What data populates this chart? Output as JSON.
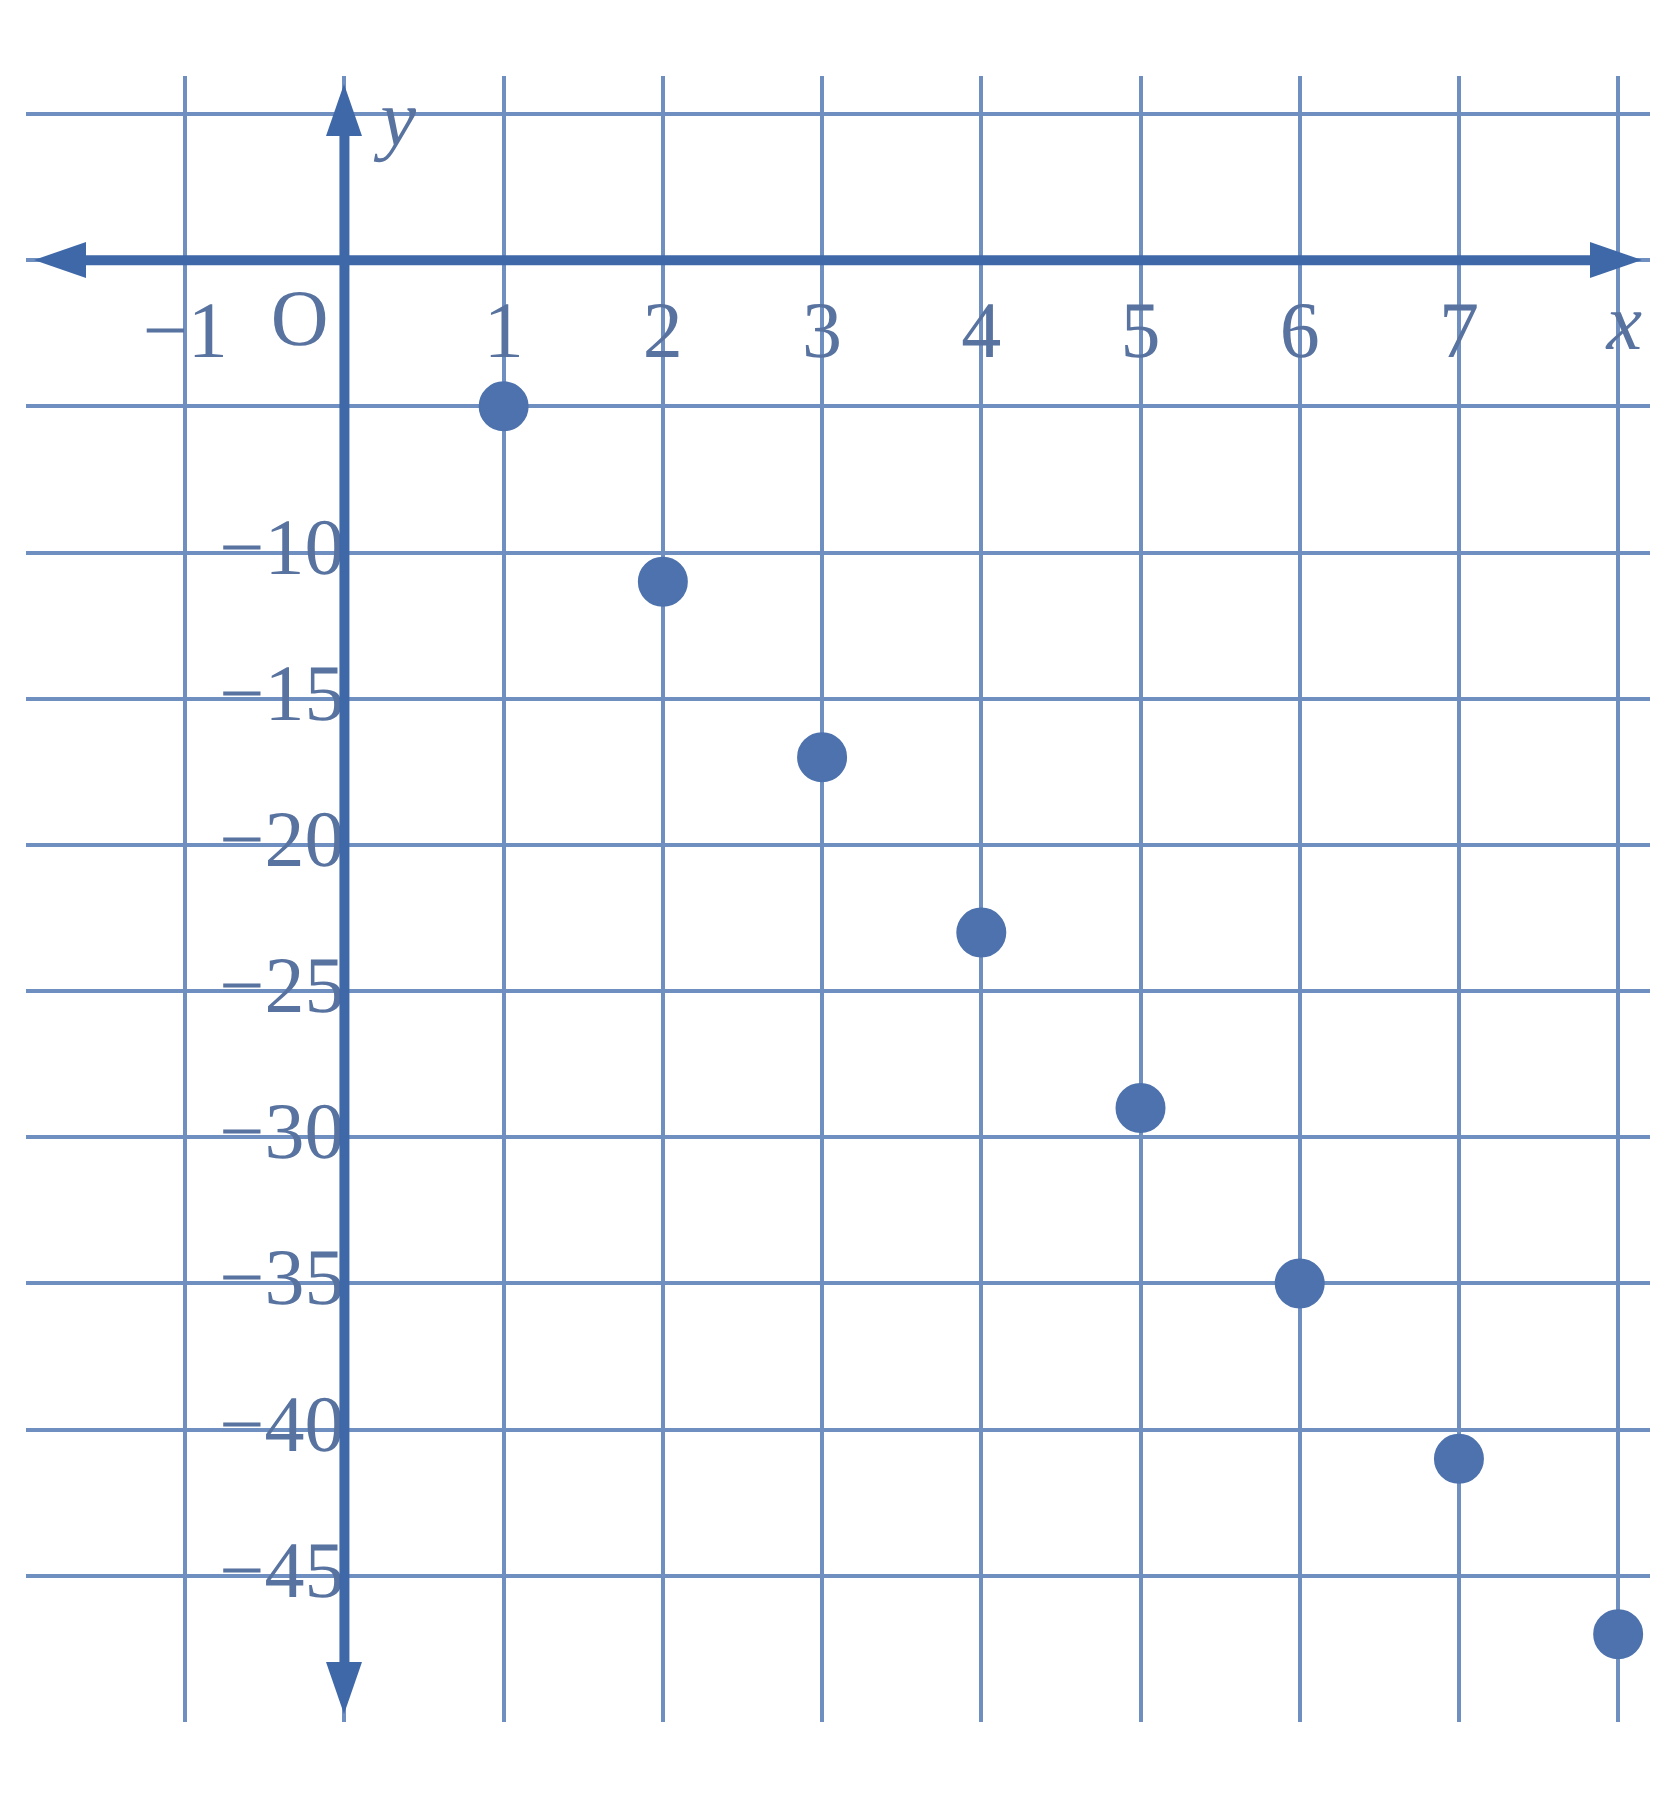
{
  "chart_data": {
    "type": "scatter",
    "xlabel": "x",
    "ylabel": "y",
    "x": [
      1,
      2,
      3,
      4,
      5,
      6,
      7,
      8
    ],
    "values": [
      -5,
      -11,
      -17,
      -23,
      -29,
      -35,
      -41,
      -47
    ],
    "color": "#4d72ad",
    "marker": "circle",
    "grid": true,
    "xlim": [
      -2,
      8.2
    ],
    "ylim": [
      -50,
      6.3
    ],
    "xticks": [
      {
        "value": -1,
        "label": "−1"
      },
      {
        "value": 0,
        "label": null
      },
      1,
      2,
      3,
      4,
      5,
      6,
      7,
      {
        "value": 8,
        "label": null
      }
    ],
    "yticks": [
      {
        "value": 5,
        "label": null
      },
      {
        "value": 0,
        "label": null
      },
      {
        "value": -5,
        "label": null
      },
      {
        "value": -10,
        "label": "−10"
      },
      {
        "value": -15,
        "label": "−15"
      },
      {
        "value": -20,
        "label": "−20"
      },
      {
        "value": -25,
        "label": "−25"
      },
      {
        "value": -30,
        "label": "−30"
      },
      {
        "value": -35,
        "label": "−35"
      },
      {
        "value": -40,
        "label": "−40"
      },
      {
        "value": -45,
        "label": "−45"
      }
    ],
    "annotations": [
      "O"
    ]
  }
}
